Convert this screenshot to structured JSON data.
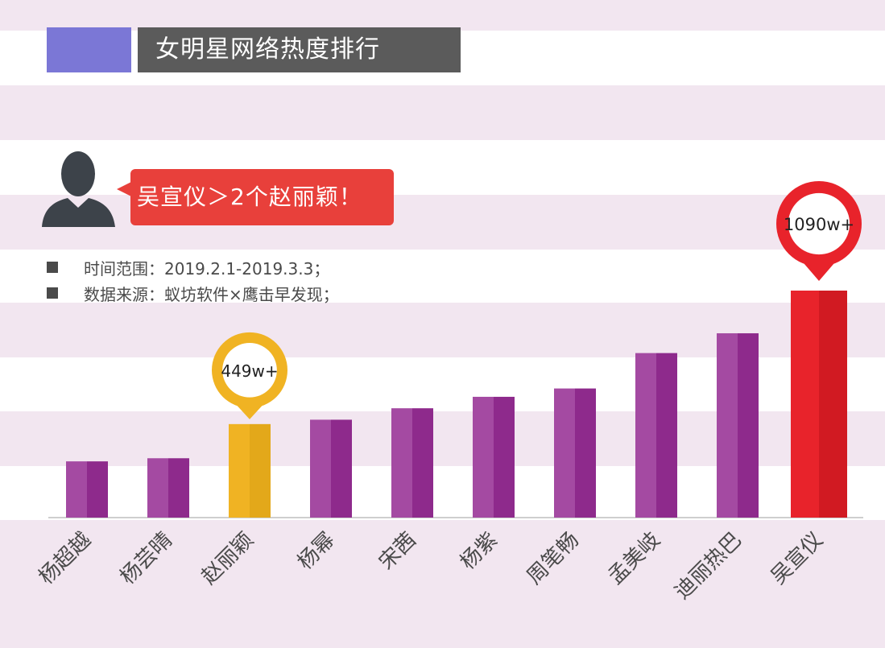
{
  "title": "女明星网络热度排行",
  "callout": "吴宣仪＞2个赵丽颖！",
  "notes": [
    "时间范围：2019.2.1-2019.3.3；",
    "数据来源：蚁坊软件×鹰击早发现；"
  ],
  "colors": {
    "bar": "#8e2a8c",
    "bar_light": "#a44aa2",
    "highlight_gold": "#f0b323",
    "highlight_red": "#e8232b",
    "band": "#f2e6f0",
    "title_bg": "#5b5b5b",
    "title_accent": "#7b77d6"
  },
  "chart_data": {
    "type": "bar",
    "title": "女明星网络热度排行",
    "categories": [
      "杨超越",
      "杨芸晴",
      "赵丽颖",
      "杨幂",
      "宋茜",
      "杨紫",
      "周笔畅",
      "孟美岐",
      "迪丽热巴",
      "吴宣仪"
    ],
    "values": [
      270,
      285,
      449,
      470,
      525,
      580,
      620,
      790,
      885,
      1090
    ],
    "unit": "w",
    "annotations": [
      {
        "category": "赵丽颖",
        "label": "449w+",
        "color": "#f0b323"
      },
      {
        "category": "吴宣仪",
        "label": "1090w+",
        "color": "#e8232b"
      }
    ],
    "highlight": {
      "赵丽颖": "gold",
      "吴宣仪": "red"
    },
    "ylim": [
      0,
      1180
    ],
    "grid": false,
    "legend": "none"
  }
}
